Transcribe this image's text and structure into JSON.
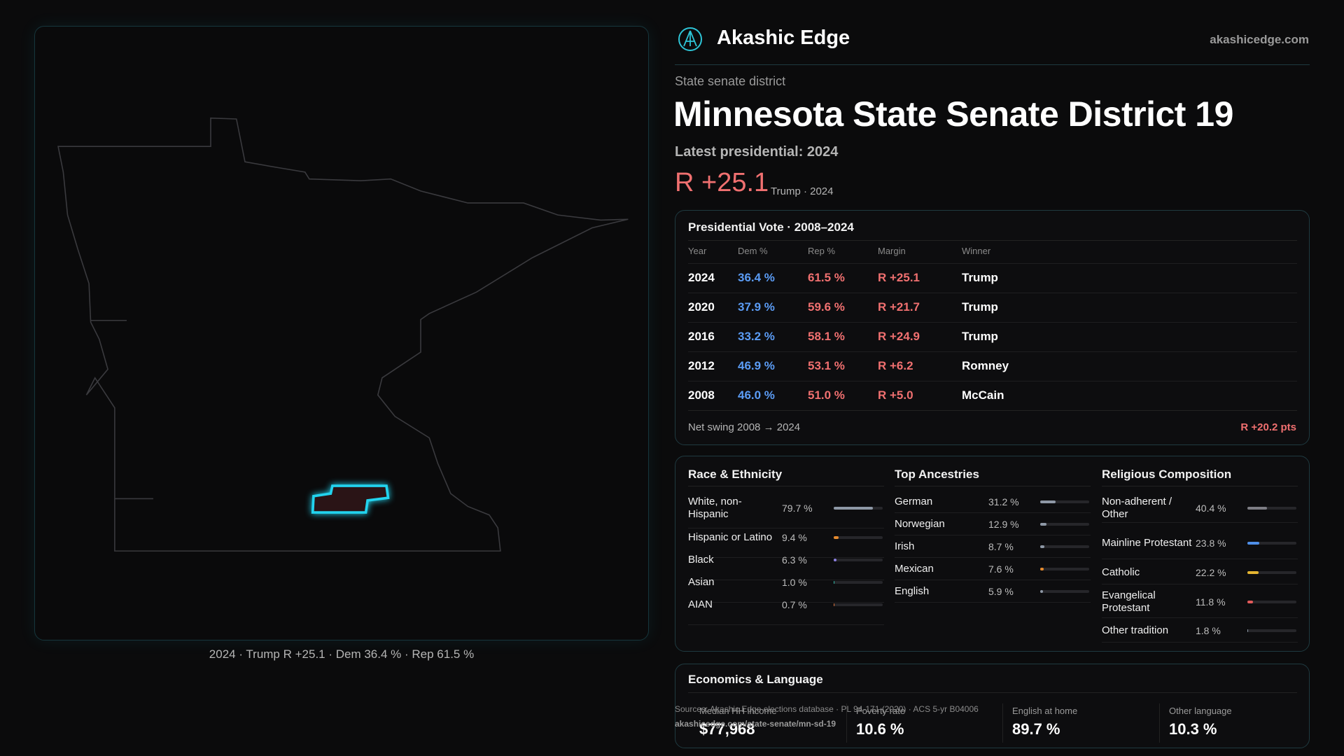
{
  "header": {
    "brand": "Akashic Edge",
    "site": "akashicedge.com"
  },
  "map": {
    "caption": "2024 · Trump R +25.1 · Dem 36.4 % · Rep 61.5 %"
  },
  "district": {
    "kind": "State senate district",
    "title": "Minnesota State Senate District 19",
    "latest": "Latest presidential: 2024",
    "margin": "R +25.1",
    "margin_note": "Trump · 2024"
  },
  "presidential": {
    "title": "Presidential Vote · 2008–2024",
    "columns": [
      "Year",
      "Dem %",
      "Rep %",
      "Margin",
      "Winner"
    ],
    "rows": [
      [
        "2024",
        "36.4 %",
        "61.5 %",
        "R +25.1",
        "Trump"
      ],
      [
        "2020",
        "37.9 %",
        "59.6 %",
        "R +21.7",
        "Trump"
      ],
      [
        "2016",
        "33.2 %",
        "58.1 %",
        "R +24.9",
        "Trump"
      ],
      [
        "2012",
        "46.9 %",
        "53.1 %",
        "R +6.2",
        "Romney"
      ],
      [
        "2008",
        "46.0 %",
        "51.0 %",
        "R +5.0",
        "McCain"
      ]
    ],
    "swing_label": "Net swing 2008 → 2024",
    "swing_value": "R +20.2 pts"
  },
  "race": {
    "title": "Race & Ethnicity",
    "items": [
      {
        "name": "White, non-Hispanic",
        "value": 79.7,
        "label": "79.7 %",
        "color": "#8e98a6"
      },
      {
        "name": "Hispanic or Latino",
        "value": 9.4,
        "label": "9.4 %",
        "color": "#e58a2e"
      },
      {
        "name": "Black",
        "value": 6.3,
        "label": "6.3 %",
        "color": "#8b7fe0"
      },
      {
        "name": "Asian",
        "value": 1.0,
        "label": "1.0 %",
        "color": "#2fb8a6"
      },
      {
        "name": "AIAN",
        "value": 0.7,
        "label": "0.7 %",
        "color": "#d9703a"
      }
    ]
  },
  "ancestry": {
    "title": "Top Ancestries",
    "items": [
      {
        "name": "German",
        "value": 31.2,
        "label": "31.2 %",
        "color": "#8e98a6"
      },
      {
        "name": "Norwegian",
        "value": 12.9,
        "label": "12.9 %",
        "color": "#8e98a6"
      },
      {
        "name": "Irish",
        "value": 8.7,
        "label": "8.7 %",
        "color": "#8e98a6"
      },
      {
        "name": "Mexican",
        "value": 7.6,
        "label": "7.6 %",
        "color": "#e58a2e"
      },
      {
        "name": "English",
        "value": 5.9,
        "label": "5.9 %",
        "color": "#8e98a6"
      }
    ]
  },
  "religion": {
    "title": "Religious Composition",
    "items": [
      {
        "name": "Non-adherent / Other",
        "value": 40.4,
        "label": "40.4 %",
        "color": "#7d7d84"
      },
      {
        "name": "Mainline Protestant",
        "value": 23.8,
        "label": "23.8 %",
        "color": "#4f8fe8"
      },
      {
        "name": "Catholic",
        "value": 22.2,
        "label": "22.2 %",
        "color": "#e5b531"
      },
      {
        "name": "Evangelical Protestant",
        "value": 11.8,
        "label": "11.8 %",
        "color": "#e35a5a"
      },
      {
        "name": "Other tradition",
        "value": 1.8,
        "label": "1.8 %",
        "color": "#8e98a6"
      }
    ]
  },
  "economics": {
    "title": "Economics & Language",
    "items": [
      {
        "label": "Median HH income",
        "value": "$77,968"
      },
      {
        "label": "Poverty rate",
        "value": "10.6 %"
      },
      {
        "label": "English at home",
        "value": "89.7 %"
      },
      {
        "label": "Other language",
        "value": "10.3 %"
      }
    ]
  },
  "sources": {
    "line1": "Sources: Akashic Edge elections database · PL 94-171 (2020) · ACS 5-yr B04006",
    "line2": "akashicedge.com/state-senate/mn-sd-19"
  }
}
